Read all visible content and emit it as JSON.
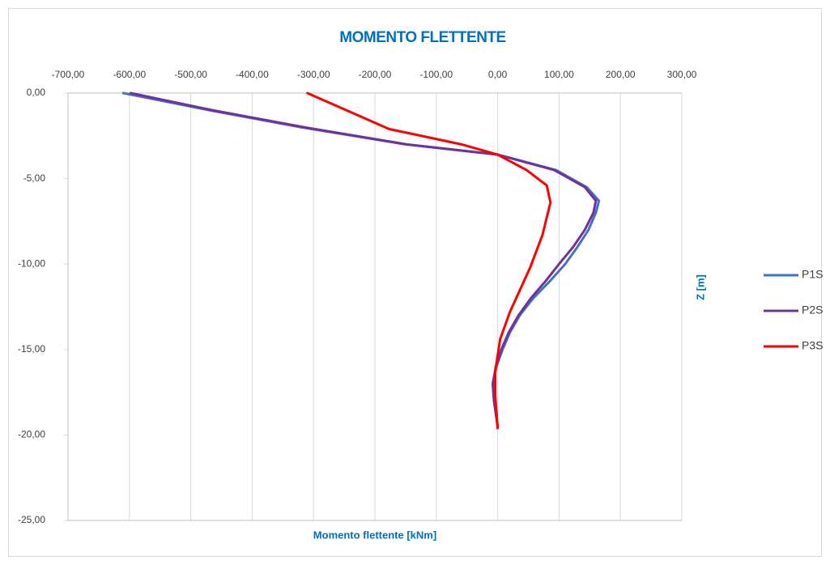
{
  "chart_data": {
    "type": "line",
    "title": "MOMENTO FLETTENTE",
    "x_label": "Momento flettente [kNm]",
    "y_label": "Z [m]",
    "xlim": [
      -700,
      300
    ],
    "ylim": [
      -25,
      0
    ],
    "xticks": [
      {
        "value": -700,
        "label": "-700,00"
      },
      {
        "value": -600,
        "label": "-600,00"
      },
      {
        "value": -500,
        "label": "-500,00"
      },
      {
        "value": -400,
        "label": "-400,00"
      },
      {
        "value": -300,
        "label": "-300,00"
      },
      {
        "value": -200,
        "label": "-200,00"
      },
      {
        "value": -100,
        "label": "-100,00"
      },
      {
        "value": 0,
        "label": "0,00"
      },
      {
        "value": 100,
        "label": "100,00"
      },
      {
        "value": 200,
        "label": "200,00"
      },
      {
        "value": 300,
        "label": "300,00"
      }
    ],
    "yticks": [
      {
        "value": 0,
        "label": "0,00"
      },
      {
        "value": -5,
        "label": "-5,00"
      },
      {
        "value": -10,
        "label": "-10,00"
      },
      {
        "value": -15,
        "label": "-15,00"
      },
      {
        "value": -20,
        "label": "-20,00"
      },
      {
        "value": -25,
        "label": "-25,00"
      }
    ],
    "grid": true,
    "legend": "right",
    "series": [
      {
        "name": "P1S",
        "color": "#4472c4",
        "x": [
          -610,
          -470,
          -320,
          -150,
          0,
          95,
          145,
          165,
          160,
          148,
          130,
          110,
          85,
          58,
          36,
          20,
          8,
          -2,
          -8,
          -6,
          -2,
          0
        ],
        "values": [
          0,
          -1,
          -2,
          -3,
          -3.6,
          -4.5,
          -5.5,
          -6.3,
          -7,
          -8,
          -9,
          -10,
          -11,
          -12,
          -13,
          -14,
          -15,
          -16,
          -17,
          -18,
          -19,
          -19.5
        ]
      },
      {
        "name": "P2S",
        "color": "#7030a0",
        "x": [
          -598,
          -465,
          -315,
          -148,
          0,
          92,
          142,
          160,
          156,
          142,
          123,
          100,
          78,
          54,
          34,
          18,
          6,
          -3,
          -8,
          -6,
          -2,
          0
        ],
        "values": [
          0,
          -1,
          -2,
          -3,
          -3.6,
          -4.5,
          -5.5,
          -6.3,
          -7,
          -8,
          -9,
          -10,
          -11,
          -12,
          -13,
          -14,
          -15,
          -16,
          -17,
          -18,
          -19,
          -19.5
        ]
      },
      {
        "name": "P3S",
        "color": "#ff0000",
        "x": [
          -310,
          -177,
          -59,
          0,
          47,
          80,
          86,
          73,
          53,
          20,
          4,
          -4,
          -4,
          0
        ],
        "values": [
          0,
          -2.1,
          -3,
          -3.6,
          -4.5,
          -5.4,
          -6.4,
          -8.3,
          -10.2,
          -12.8,
          -14.4,
          -16.3,
          -17.7,
          -19.6
        ]
      }
    ]
  }
}
